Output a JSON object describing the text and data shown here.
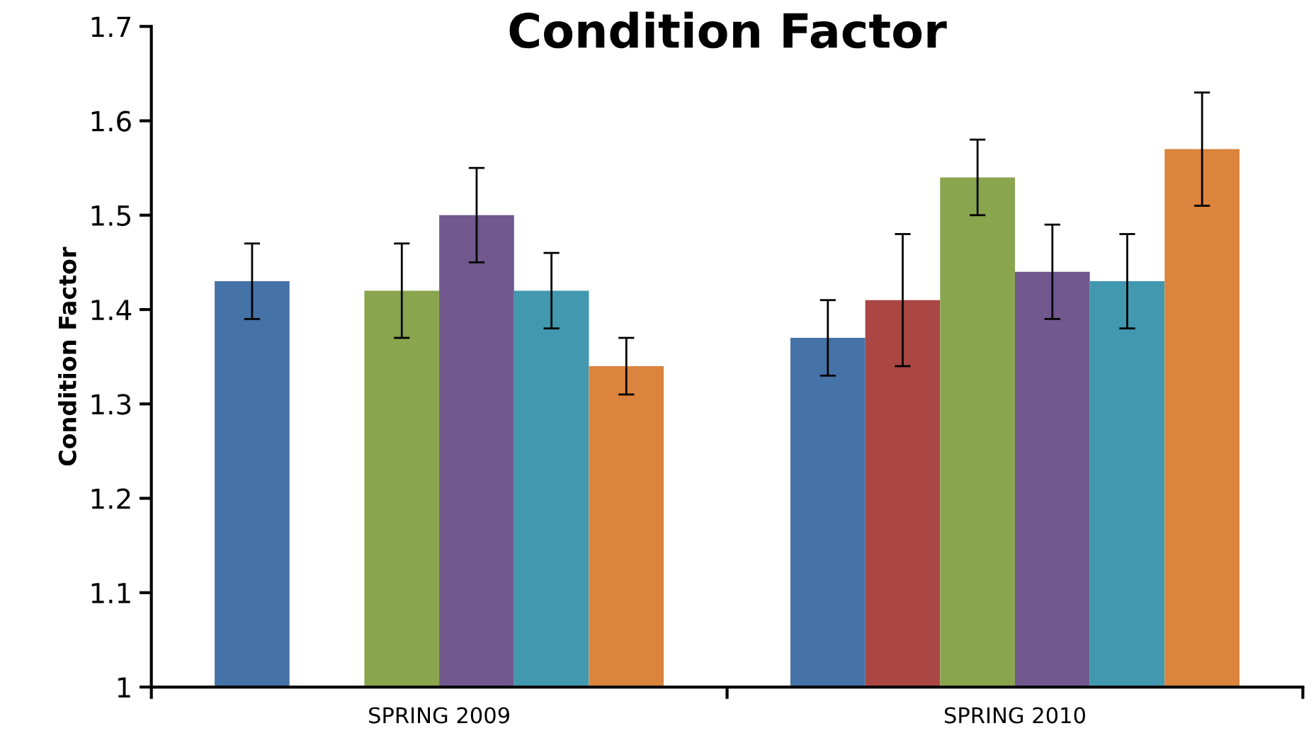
{
  "chart_data": {
    "type": "bar",
    "title": "Condition Factor",
    "ylabel": "Condition Factor",
    "categories": [
      "SPRING 2009",
      "SPRING 2010"
    ],
    "series": [
      {
        "color": "#4572a7",
        "values": [
          1.43,
          1.37
        ],
        "errors": [
          0.04,
          0.04
        ]
      },
      {
        "color": "#aa4643",
        "values": [
          null,
          1.41
        ],
        "errors": [
          null,
          0.07
        ]
      },
      {
        "color": "#89a54e",
        "values": [
          1.42,
          1.54
        ],
        "errors": [
          0.05,
          0.04
        ]
      },
      {
        "color": "#71588f",
        "values": [
          1.5,
          1.44
        ],
        "errors": [
          0.05,
          0.05
        ]
      },
      {
        "color": "#4198af",
        "values": [
          1.42,
          1.43
        ],
        "errors": [
          0.04,
          0.05
        ]
      },
      {
        "color": "#db843d",
        "values": [
          1.34,
          1.57
        ],
        "errors": [
          0.03,
          0.06
        ]
      }
    ],
    "ylim": [
      1,
      1.7
    ],
    "yticks": [
      1,
      1.1,
      1.2,
      1.3,
      1.4,
      1.5,
      1.6,
      1.7
    ],
    "grid": false,
    "legend": false
  }
}
